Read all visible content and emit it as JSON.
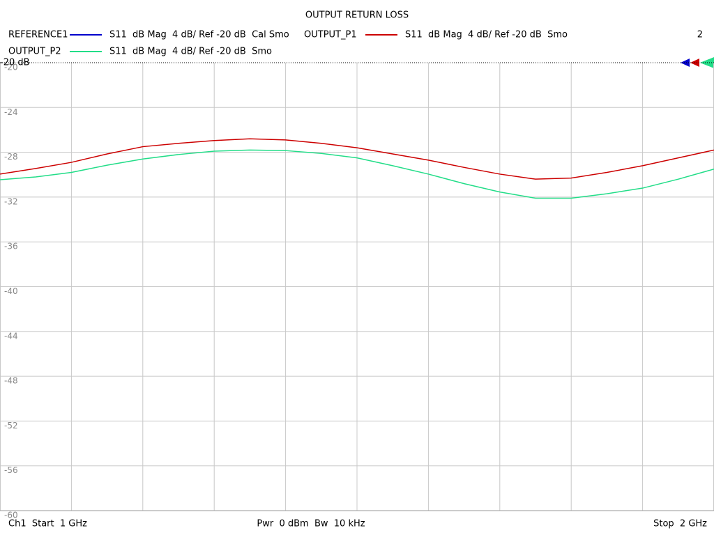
{
  "chart_data": {
    "type": "line",
    "title": "OUTPUT RETURN LOSS",
    "x": [
      1.0,
      1.05,
      1.1,
      1.15,
      1.2,
      1.25,
      1.3,
      1.35,
      1.4,
      1.45,
      1.5,
      1.55,
      1.6,
      1.65,
      1.7,
      1.75,
      1.8,
      1.85,
      1.9,
      1.95,
      2.0
    ],
    "series": [
      {
        "name": "REFERENCE1",
        "description": "S11  dB Mag  4 dB/ Ref -20 dB  Cal Smo",
        "color": "#0000cc",
        "values": [
          null,
          null,
          null,
          null,
          null,
          null,
          null,
          null,
          null,
          null,
          null,
          null,
          null,
          null,
          null,
          null,
          null,
          null,
          null,
          null,
          null
        ]
      },
      {
        "name": "OUTPUT_P1",
        "description": "S11  dB Mag  4 dB/ Ref -20 dB  Smo",
        "color": "#cc0000",
        "values": [
          -29.95,
          -29.45,
          -28.9,
          -28.15,
          -27.5,
          -27.2,
          -26.95,
          -26.8,
          -26.9,
          -27.2,
          -27.6,
          -28.15,
          -28.7,
          -29.35,
          -29.95,
          -30.4,
          -30.3,
          -29.8,
          -29.2,
          -28.5,
          -27.8
        ]
      },
      {
        "name": "OUTPUT_P2",
        "description": "S11  dB Mag  4 dB/ Ref -20 dB  Smo",
        "color": "#22dd88",
        "values": [
          -30.45,
          -30.2,
          -29.8,
          -29.15,
          -28.6,
          -28.2,
          -27.9,
          -27.8,
          -27.85,
          -28.1,
          -28.5,
          -29.2,
          -29.95,
          -30.8,
          -31.55,
          -32.1,
          -32.1,
          -31.7,
          -31.2,
          -30.4,
          -29.5
        ]
      }
    ],
    "xlim": [
      1,
      2
    ],
    "ylim": [
      -60,
      -20
    ],
    "yticks": [
      -20,
      -24,
      -28,
      -32,
      -36,
      -40,
      -44,
      -48,
      -52,
      -56,
      -60
    ],
    "reference_label": "-20 dB",
    "channel_count": "2",
    "footer_start": "Ch1  Start  1 GHz",
    "footer_center": "Pwr  0 dBm  Bw  10 kHz",
    "footer_stop": "Stop  2 GHz",
    "grid": true
  }
}
